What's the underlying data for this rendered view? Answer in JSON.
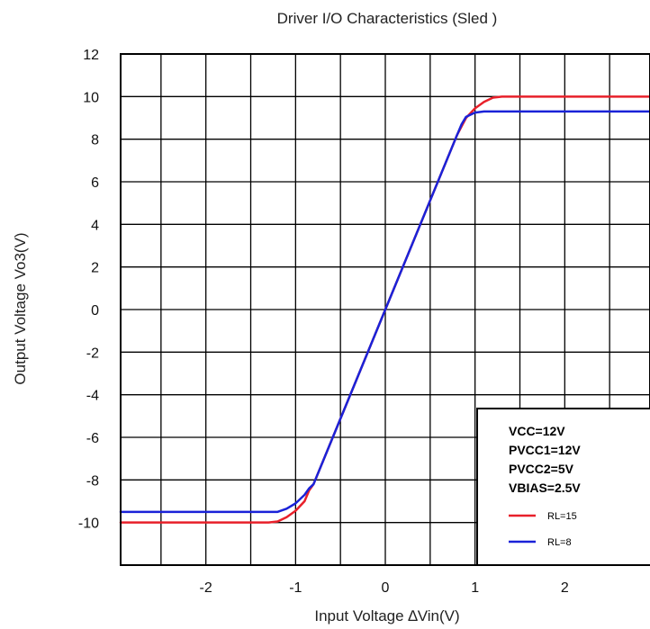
{
  "chart_data": {
    "type": "line",
    "title": "Driver I/O Characteristics (Sled )",
    "xlabel": "Input Voltage ∆Vin(V)",
    "ylabel": "Output Voltage Vo3(V)",
    "xlim": [
      -2.95,
      2.95
    ],
    "ylim": [
      -12,
      12
    ],
    "xticks": [
      -2,
      -1,
      0,
      1,
      2
    ],
    "yticks": [
      -10,
      -8,
      -6,
      -4,
      -2,
      0,
      2,
      4,
      6,
      8,
      10,
      12
    ],
    "grid": true,
    "conditions": [
      "VCC=12V",
      "PVCC1=12V",
      "PVCC2=5V",
      "VBIAS=2.5V"
    ],
    "legend_position": "bottom-right",
    "series": [
      {
        "name": "RL=15",
        "color": "#e8202a",
        "x": [
          -2.95,
          -1.3,
          -1.2,
          -1.1,
          -1.0,
          -0.9,
          -0.85,
          -0.8,
          0.0,
          0.8,
          0.9,
          1.0,
          1.1,
          1.2,
          1.3,
          2.95
        ],
        "y": [
          -10.0,
          -10.0,
          -9.95,
          -9.75,
          -9.45,
          -9.0,
          -8.5,
          -8.2,
          0.0,
          8.2,
          9.0,
          9.45,
          9.75,
          9.95,
          10.0,
          10.0
        ]
      },
      {
        "name": "RL=8",
        "color": "#1a22d8",
        "x": [
          -2.95,
          -1.2,
          -1.1,
          -1.0,
          -0.9,
          -0.85,
          -0.8,
          0.0,
          0.8,
          0.85,
          0.9,
          1.0,
          1.1,
          1.2,
          2.95
        ],
        "y": [
          -9.5,
          -9.5,
          -9.35,
          -9.1,
          -8.7,
          -8.4,
          -8.2,
          0.0,
          8.2,
          8.7,
          9.05,
          9.25,
          9.3,
          9.3,
          9.3
        ]
      }
    ]
  }
}
